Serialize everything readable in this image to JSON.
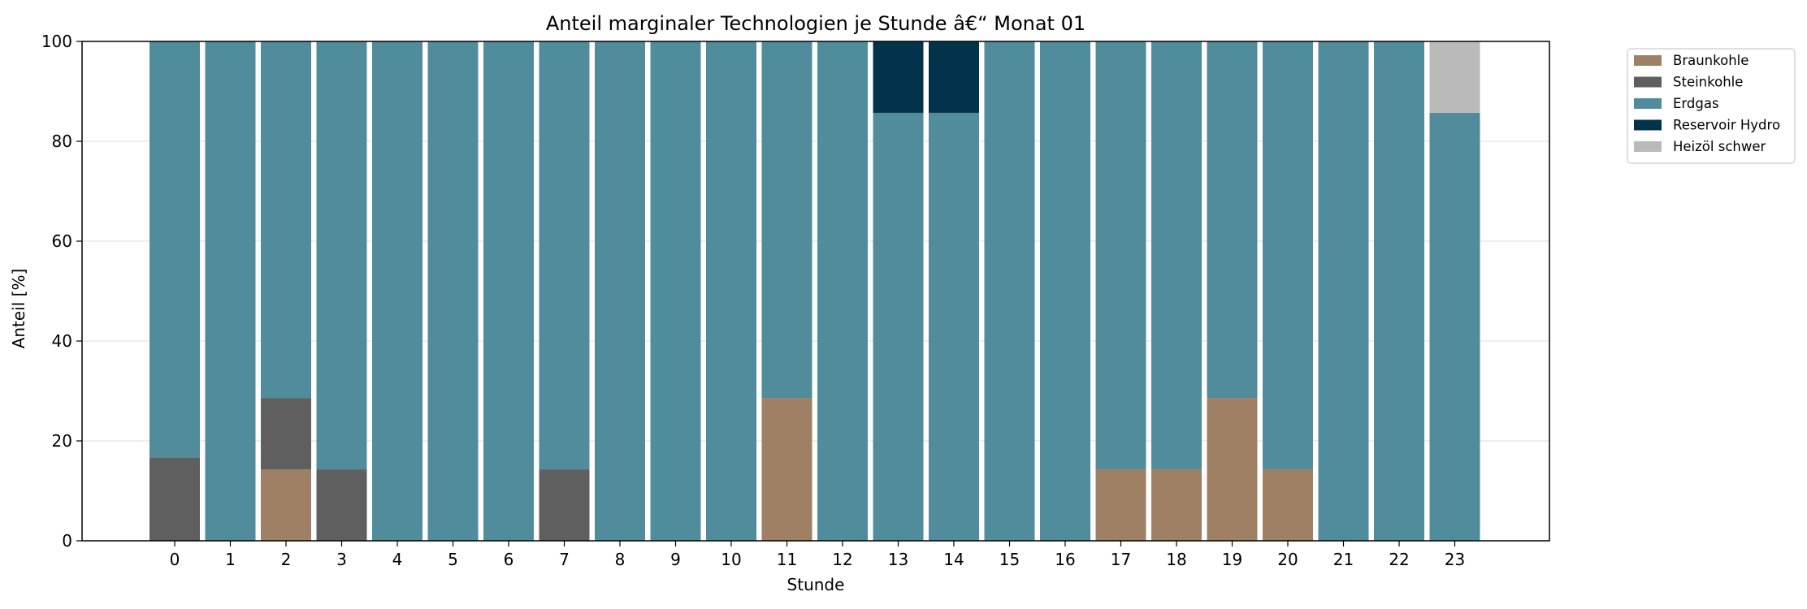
{
  "chart_data": {
    "type": "bar",
    "stacked": true,
    "title": "Anteil marginaler Technologien je Stunde â€“ Monat 01",
    "xlabel": "Stunde",
    "ylabel": "Anteil [%]",
    "ylim": [
      0,
      100
    ],
    "yticks": [
      0,
      20,
      40,
      60,
      80,
      100
    ],
    "grid": true,
    "legend_position": "outside-top-right",
    "categories": [
      "0",
      "1",
      "2",
      "3",
      "4",
      "5",
      "6",
      "7",
      "8",
      "9",
      "10",
      "11",
      "12",
      "13",
      "14",
      "15",
      "16",
      "17",
      "18",
      "19",
      "20",
      "21",
      "22",
      "23"
    ],
    "series": [
      {
        "name": "Braunkohle",
        "color": "#a08064",
        "values": [
          0,
          0,
          14.3,
          0,
          0,
          0,
          0,
          0,
          0,
          0,
          0,
          28.6,
          0,
          0,
          0,
          0,
          0,
          14.3,
          14.3,
          28.6,
          14.3,
          0,
          0,
          0
        ]
      },
      {
        "name": "Steinkohle",
        "color": "#5f5f5f",
        "values": [
          16.7,
          0,
          14.3,
          14.3,
          0,
          0,
          0,
          14.3,
          0,
          0,
          0,
          0,
          0,
          0,
          0,
          0,
          0,
          0,
          0,
          0,
          0,
          0,
          0,
          0
        ]
      },
      {
        "name": "Erdgas",
        "color": "#508c9b",
        "values": [
          83.3,
          100,
          71.4,
          85.7,
          100,
          100,
          100,
          85.7,
          100,
          100,
          100,
          71.4,
          100,
          85.7,
          85.7,
          100,
          100,
          85.7,
          85.7,
          71.4,
          85.7,
          100,
          100,
          85.7
        ]
      },
      {
        "name": "Reservoir Hydro",
        "color": "#03334b",
        "values": [
          0,
          0,
          0,
          0,
          0,
          0,
          0,
          0,
          0,
          0,
          0,
          0,
          0,
          14.3,
          14.3,
          0,
          0,
          0,
          0,
          0,
          0,
          0,
          0,
          0
        ]
      },
      {
        "name": "Heizöl schwer",
        "color": "#bababa",
        "values": [
          0,
          0,
          0,
          0,
          0,
          0,
          0,
          0,
          0,
          0,
          0,
          0,
          0,
          0,
          0,
          0,
          0,
          0,
          0,
          0,
          0,
          0,
          0,
          14.3
        ]
      }
    ]
  }
}
